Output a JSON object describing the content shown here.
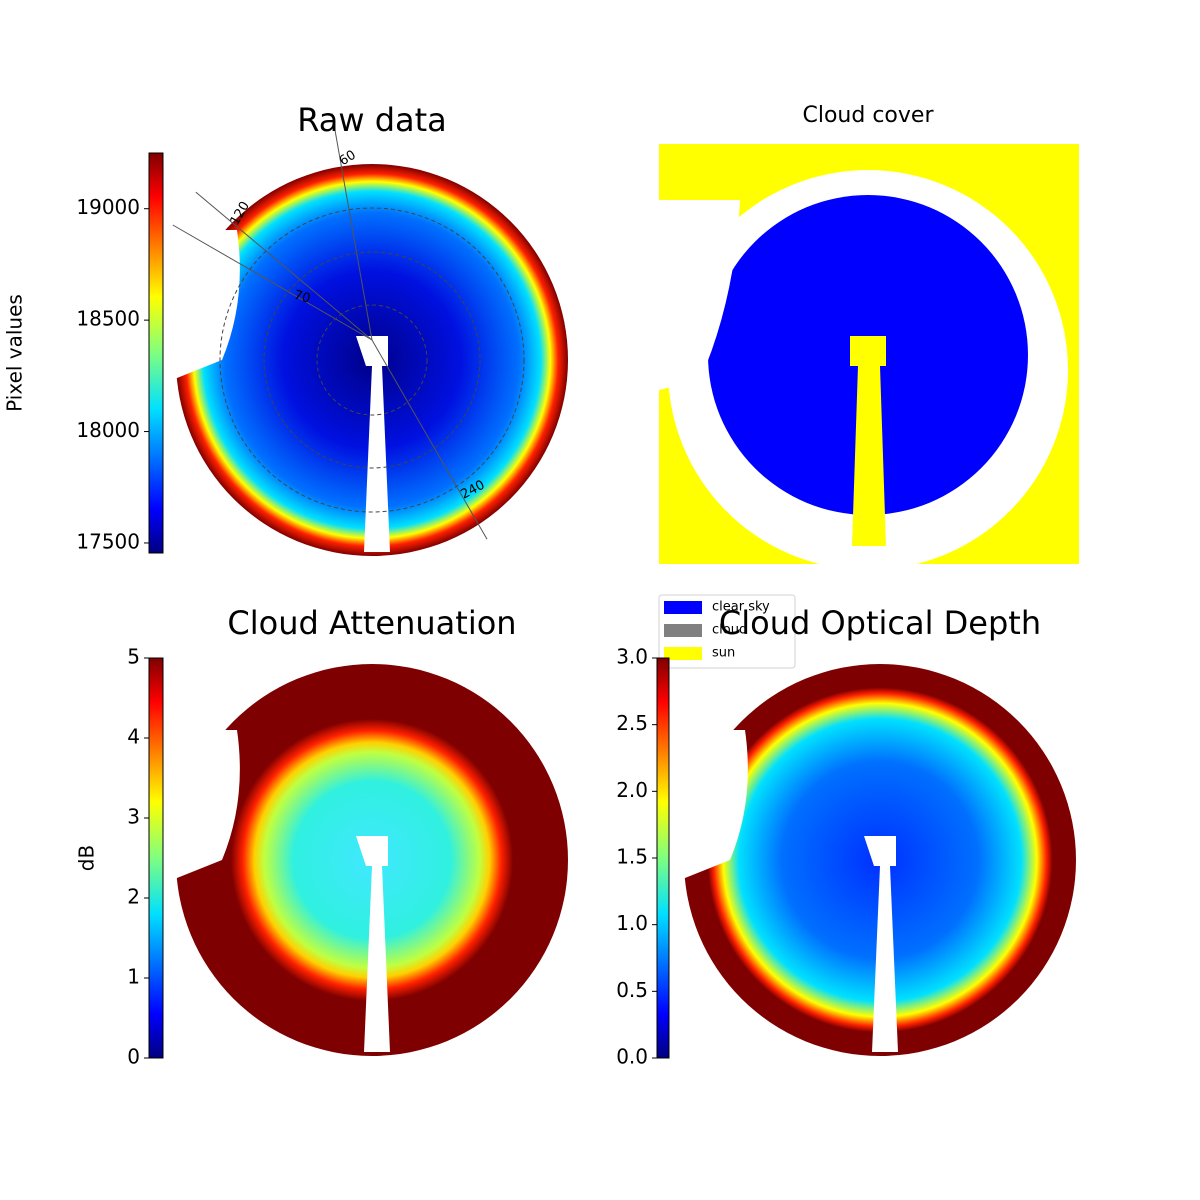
{
  "chart_data": [
    {
      "type": "heatmap",
      "title": "Raw data",
      "colorbar_label": "Pixel values",
      "ylim": [
        17455,
        19250
      ],
      "yticks": [
        17500,
        18000,
        18500,
        19000
      ],
      "annotations": [
        "120",
        "60",
        "240",
        "70"
      ]
    },
    {
      "type": "classmap",
      "title": "Cloud cover",
      "series": [
        {
          "name": "clear sky",
          "color": "#0000ff"
        },
        {
          "name": "cloud",
          "color": "#808080"
        },
        {
          "name": "sun",
          "color": "#ffff00"
        }
      ]
    },
    {
      "type": "heatmap",
      "title": "Cloud Attenuation",
      "colorbar_label": "dB",
      "ylim": [
        0,
        5
      ],
      "yticks": [
        0,
        1,
        2,
        3,
        4,
        5
      ]
    },
    {
      "type": "heatmap",
      "title": "Cloud Optical Depth",
      "ylim": [
        0,
        3
      ],
      "yticks": [
        {
          "value": 0,
          "label": "0.0"
        },
        {
          "value": 0.5,
          "label": "0.5"
        },
        {
          "value": 1,
          "label": "1.0"
        },
        {
          "value": 1.5,
          "label": "1.5"
        },
        {
          "value": 2,
          "label": "2.0"
        },
        {
          "value": 2.5,
          "label": "2.5"
        },
        {
          "value": 3,
          "label": "3.0"
        }
      ]
    }
  ]
}
